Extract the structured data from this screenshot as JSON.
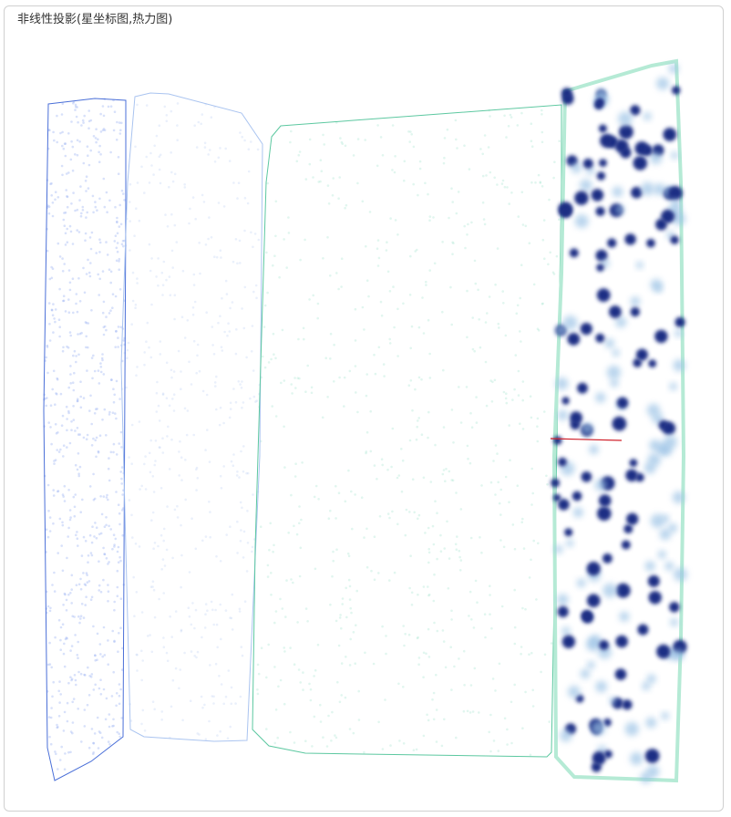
{
  "header": {
    "title": "非线性投影(星坐标图,热力图)"
  }
}
